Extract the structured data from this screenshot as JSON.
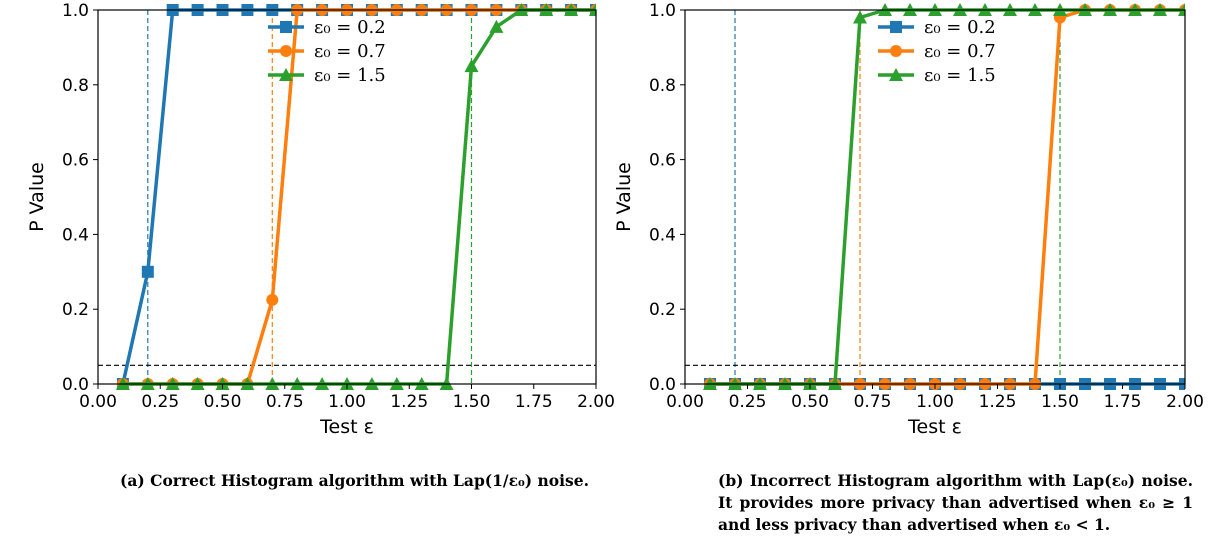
{
  "chart_data": [
    {
      "type": "line",
      "title": "",
      "xlabel": "Test ε",
      "ylabel": "P Value",
      "xlim": [
        0.0,
        2.0
      ],
      "ylim": [
        0.0,
        1.0
      ],
      "xticks": [
        "0.00",
        "0.25",
        "0.50",
        "0.75",
        "1.00",
        "1.25",
        "1.50",
        "1.75",
        "2.00"
      ],
      "yticks": [
        "0.0",
        "0.2",
        "0.4",
        "0.6",
        "0.8",
        "1.0"
      ],
      "threshold": 0.05,
      "vlines": [
        0.2,
        0.7,
        1.5
      ],
      "legend": "top-center",
      "caption": "(a) Correct Histogram algorithm with Lap(1/ε₀) noise.",
      "x": [
        0.1,
        0.2,
        0.3,
        0.4,
        0.5,
        0.6,
        0.7,
        0.8,
        0.9,
        1.0,
        1.1,
        1.2,
        1.3,
        1.4,
        1.5,
        1.6,
        1.7,
        1.8,
        1.9,
        2.0
      ],
      "series": [
        {
          "name": "ε₀ = 0.2",
          "color": "#1f77b4",
          "marker": "square",
          "values": [
            0.0,
            0.3,
            1.0,
            1.0,
            1.0,
            1.0,
            1.0,
            1.0,
            1.0,
            1.0,
            1.0,
            1.0,
            1.0,
            1.0,
            1.0,
            1.0,
            1.0,
            1.0,
            1.0,
            1.0
          ]
        },
        {
          "name": "ε₀ = 0.7",
          "color": "#ff7f0e",
          "marker": "circle",
          "values": [
            0.0,
            0.0,
            0.0,
            0.0,
            0.0,
            0.0,
            0.225,
            1.0,
            1.0,
            1.0,
            1.0,
            1.0,
            1.0,
            1.0,
            1.0,
            1.0,
            1.0,
            1.0,
            1.0,
            1.0
          ]
        },
        {
          "name": "ε₀ = 1.5",
          "color": "#2ca02c",
          "marker": "triangle",
          "values": [
            0.0,
            0.0,
            0.0,
            0.0,
            0.0,
            0.0,
            0.0,
            0.0,
            0.0,
            0.0,
            0.0,
            0.0,
            0.0,
            0.0,
            0.85,
            0.955,
            1.0,
            1.0,
            1.0,
            1.0
          ]
        }
      ]
    },
    {
      "type": "line",
      "title": "",
      "xlabel": "Test ε",
      "ylabel": "P Value",
      "xlim": [
        0.0,
        2.0
      ],
      "ylim": [
        0.0,
        1.0
      ],
      "xticks": [
        "0.00",
        "0.25",
        "0.50",
        "0.75",
        "1.00",
        "1.25",
        "1.50",
        "1.75",
        "2.00"
      ],
      "yticks": [
        "0.0",
        "0.2",
        "0.4",
        "0.6",
        "0.8",
        "1.0"
      ],
      "threshold": 0.05,
      "vlines": [
        0.2,
        0.7,
        1.5
      ],
      "legend": "top-center",
      "caption": "(b) Incorrect Histogram algorithm with Lap(ε₀) noise. It provides more privacy than advertised when ε₀ ≥ 1 and less privacy than advertised when ε₀ < 1.",
      "x": [
        0.1,
        0.2,
        0.3,
        0.4,
        0.5,
        0.6,
        0.7,
        0.8,
        0.9,
        1.0,
        1.1,
        1.2,
        1.3,
        1.4,
        1.5,
        1.6,
        1.7,
        1.8,
        1.9,
        2.0
      ],
      "series": [
        {
          "name": "ε₀ = 0.2",
          "color": "#1f77b4",
          "marker": "square",
          "values": [
            0.0,
            0.0,
            0.0,
            0.0,
            0.0,
            0.0,
            0.0,
            0.0,
            0.0,
            0.0,
            0.0,
            0.0,
            0.0,
            0.0,
            0.0,
            0.0,
            0.0,
            0.0,
            0.0,
            0.0
          ]
        },
        {
          "name": "ε₀ = 0.7",
          "color": "#ff7f0e",
          "marker": "circle",
          "values": [
            0.0,
            0.0,
            0.0,
            0.0,
            0.0,
            0.0,
            0.0,
            0.0,
            0.0,
            0.0,
            0.0,
            0.0,
            0.0,
            0.0,
            0.98,
            1.0,
            1.0,
            1.0,
            1.0,
            1.0
          ]
        },
        {
          "name": "ε₀ = 1.5",
          "color": "#2ca02c",
          "marker": "triangle",
          "values": [
            0.0,
            0.0,
            0.0,
            0.0,
            0.0,
            0.0,
            0.98,
            1.0,
            1.0,
            1.0,
            1.0,
            1.0,
            1.0,
            1.0,
            1.0,
            1.0,
            1.0,
            1.0,
            1.0,
            1.0
          ]
        }
      ]
    }
  ]
}
